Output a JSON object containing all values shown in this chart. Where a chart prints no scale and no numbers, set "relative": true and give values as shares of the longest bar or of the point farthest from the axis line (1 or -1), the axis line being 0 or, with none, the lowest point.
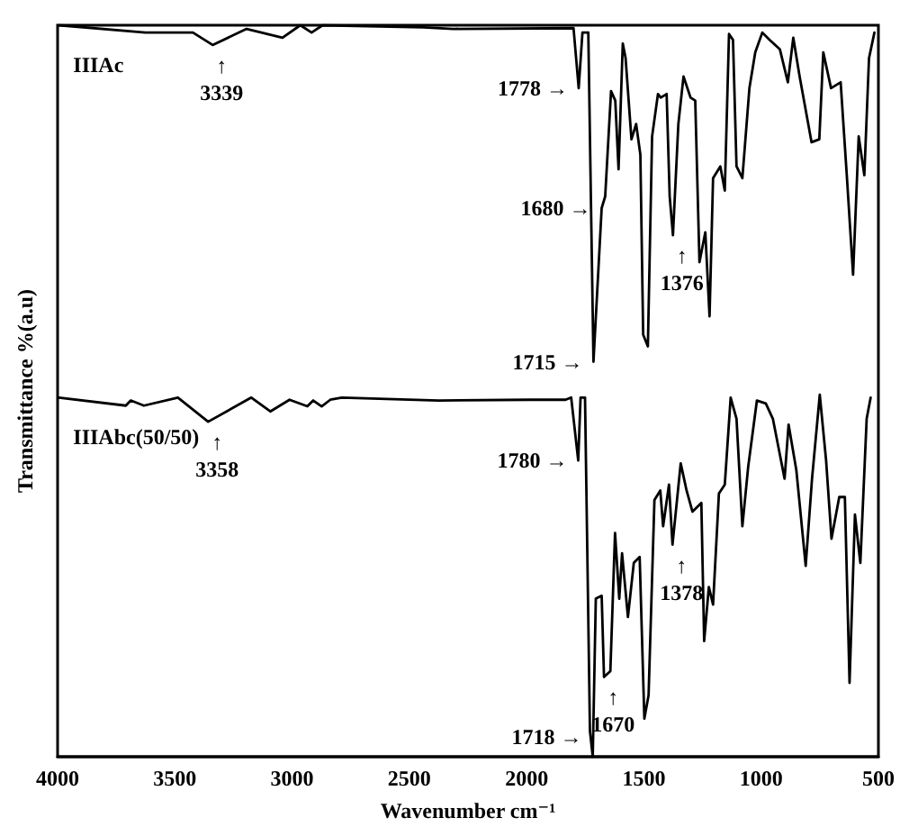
{
  "chart_data": {
    "type": "line",
    "relative": true,
    "xlabel": "Wavenumber cm⁻¹",
    "ylabel": "Transmittance %(a.u)",
    "xlim": [
      4000,
      500
    ],
    "xticks": [
      4000,
      3500,
      3000,
      2500,
      2000,
      1500,
      1000,
      500
    ],
    "grid": false,
    "legend": false,
    "series": [
      {
        "name": "IIIAc",
        "color": "#000000",
        "x": [
          3995,
          3626,
          3423,
          3339,
          3194,
          3041,
          2965,
          2917,
          2870,
          2440,
          2313,
          1800,
          1778,
          1762,
          1737,
          1715,
          1680,
          1665,
          1640,
          1622,
          1608,
          1590,
          1578,
          1553,
          1533,
          1515,
          1503,
          1483,
          1465,
          1440,
          1428,
          1403,
          1390,
          1376,
          1353,
          1331,
          1301,
          1281,
          1263,
          1238,
          1220,
          1205,
          1174,
          1155,
          1137,
          1120,
          1105,
          1080,
          1050,
          1025,
          995,
          964,
          920,
          886,
          863,
          836,
          785,
          752,
          735,
          702,
          661,
          634,
          608,
          584,
          560,
          540,
          517
        ],
        "values": [
          1.0,
          0.99,
          0.99,
          0.973,
          0.995,
          0.983,
          1.0,
          0.99,
          1.0,
          0.997,
          0.995,
          0.996,
          0.914,
          0.99,
          0.99,
          0.54,
          0.75,
          0.766,
          0.91,
          0.897,
          0.803,
          0.975,
          0.955,
          0.844,
          0.865,
          0.823,
          0.577,
          0.561,
          0.848,
          0.906,
          0.901,
          0.906,
          0.766,
          0.713,
          0.865,
          0.93,
          0.901,
          0.897,
          0.676,
          0.717,
          0.602,
          0.791,
          0.807,
          0.774,
          0.988,
          0.98,
          0.807,
          0.791,
          0.914,
          0.963,
          0.99,
          0.98,
          0.967,
          0.922,
          0.983,
          0.93,
          0.84,
          0.844,
          0.963,
          0.914,
          0.922,
          0.791,
          0.659,
          0.848,
          0.795,
          0.955,
          0.99
        ]
      },
      {
        "name": "IIIAbc(50/50)",
        "color": "#000000",
        "x": [
          3995,
          3709,
          3688,
          3632,
          3487,
          3358,
          3174,
          3093,
          3011,
          2935,
          2910,
          2874,
          2837,
          2788,
          2375,
          1988,
          1834,
          1810,
          1780,
          1770,
          1751,
          1730,
          1718,
          1705,
          1680,
          1670,
          1643,
          1623,
          1605,
          1593,
          1568,
          1543,
          1518,
          1498,
          1480,
          1455,
          1430,
          1418,
          1393,
          1378,
          1343,
          1318,
          1293,
          1255,
          1243,
          1223,
          1205,
          1180,
          1155,
          1130,
          1105,
          1080,
          1055,
          1018,
          980,
          950,
          900,
          883,
          850,
          810,
          783,
          750,
          723,
          700,
          667,
          643,
          623,
          600,
          577,
          550,
          533
        ],
        "values": [
          0.491,
          0.48,
          0.487,
          0.48,
          0.491,
          0.458,
          0.491,
          0.472,
          0.488,
          0.479,
          0.487,
          0.479,
          0.488,
          0.491,
          0.487,
          0.488,
          0.488,
          0.491,
          0.405,
          0.491,
          0.491,
          0.035,
          0,
          0.216,
          0.22,
          0.109,
          0.117,
          0.306,
          0.216,
          0.278,
          0.191,
          0.265,
          0.273,
          0.052,
          0.084,
          0.351,
          0.364,
          0.315,
          0.372,
          0.29,
          0.401,
          0.364,
          0.335,
          0.347,
          0.158,
          0.232,
          0.208,
          0.36,
          0.372,
          0.491,
          0.462,
          0.315,
          0.397,
          0.487,
          0.483,
          0.462,
          0.38,
          0.454,
          0.392,
          0.261,
          0.38,
          0.495,
          0.405,
          0.298,
          0.355,
          0.355,
          0.101,
          0.331,
          0.265,
          0.462,
          0.491
        ]
      }
    ],
    "annotations": [
      {
        "text": "↑\n3339",
        "x": 3339,
        "y": 0.973
      },
      {
        "text": "1778 →",
        "x": 1778,
        "y": 0.914
      },
      {
        "text": "1680 →",
        "x": 1680,
        "y": 0.75
      },
      {
        "text": "1715 →",
        "x": 1715,
        "y": 0.54
      },
      {
        "text": "↑\n1376",
        "x": 1376,
        "y": 0.713
      },
      {
        "text": "↑\n3358",
        "x": 3358,
        "y": 0.458
      },
      {
        "text": "1780 →",
        "x": 1780,
        "y": 0.405
      },
      {
        "text": "1718 →",
        "x": 1718,
        "y": 0
      },
      {
        "text": "↑\n1670",
        "x": 1670,
        "y": 0.109
      },
      {
        "text": "↑\n1378",
        "x": 1378,
        "y": 0.29
      }
    ]
  }
}
